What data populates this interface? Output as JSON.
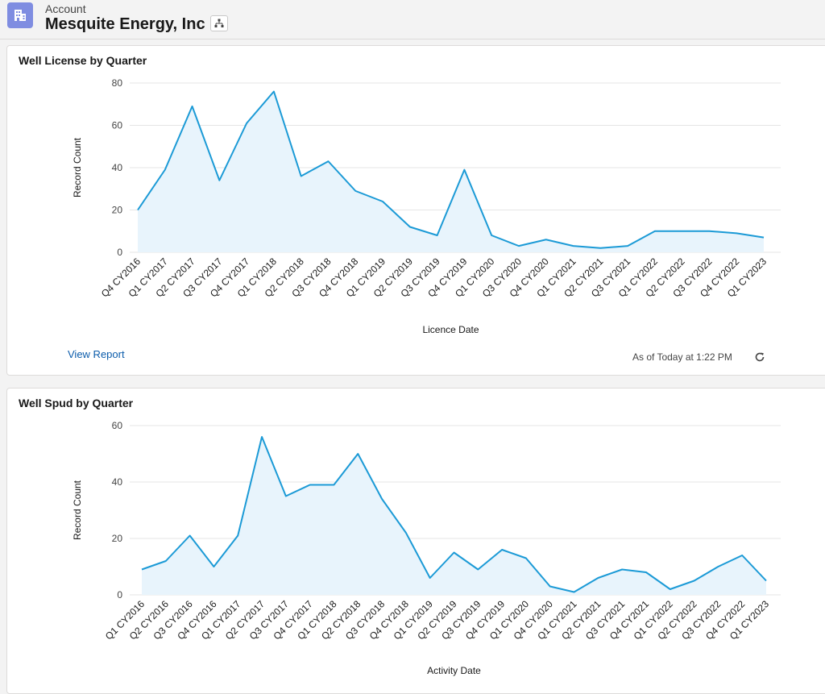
{
  "header": {
    "object_label": "Account",
    "account_name": "Mesquite Energy, Inc"
  },
  "colors": {
    "line": "#1b9ad6",
    "fill": "#e8f4fc",
    "grid": "#e5e5e5",
    "link": "#0b5cab",
    "icon_bg": "#7f8de1"
  },
  "cards": [
    {
      "title": "Well License by Quarter",
      "footer_link": "View Report",
      "as_of": "As of Today at 1:22 PM"
    },
    {
      "title": "Well Spud by Quarter"
    }
  ],
  "chart_data": [
    {
      "type": "area",
      "title": "Well License by Quarter",
      "xlabel": "Licence Date",
      "ylabel": "Record Count",
      "ylim": [
        0,
        80
      ],
      "yticks": [
        0,
        20,
        40,
        60,
        80
      ],
      "grid": true,
      "categories": [
        "Q4 CY2016",
        "Q1 CY2017",
        "Q2 CY2017",
        "Q3 CY2017",
        "Q4 CY2017",
        "Q1 CY2018",
        "Q2 CY2018",
        "Q3 CY2018",
        "Q4 CY2018",
        "Q1 CY2019",
        "Q2 CY2019",
        "Q3 CY2019",
        "Q4 CY2019",
        "Q1 CY2020",
        "Q3 CY2020",
        "Q4 CY2020",
        "Q1 CY2021",
        "Q2 CY2021",
        "Q3 CY2021",
        "Q1 CY2022",
        "Q2 CY2022",
        "Q3 CY2022",
        "Q4 CY2022",
        "Q1 CY2023"
      ],
      "values": [
        20,
        39,
        69,
        34,
        61,
        76,
        36,
        43,
        29,
        24,
        12,
        8,
        39,
        8,
        3,
        6,
        3,
        2,
        3,
        10,
        10,
        10,
        9,
        7
      ]
    },
    {
      "type": "area",
      "title": "Well Spud by Quarter",
      "xlabel": "Activity Date",
      "ylabel": "Record Count",
      "ylim": [
        0,
        60
      ],
      "yticks": [
        0,
        20,
        40,
        60
      ],
      "grid": true,
      "categories": [
        "Q1 CY2016",
        "Q2 CY2016",
        "Q3 CY2016",
        "Q4 CY2016",
        "Q1 CY2017",
        "Q2 CY2017",
        "Q3 CY2017",
        "Q4 CY2017",
        "Q1 CY2018",
        "Q2 CY2018",
        "Q3 CY2018",
        "Q4 CY2018",
        "Q1 CY2019",
        "Q2 CY2019",
        "Q3 CY2019",
        "Q4 CY2019",
        "Q1 CY2020",
        "Q4 CY2020",
        "Q1 CY2021",
        "Q2 CY2021",
        "Q3 CY2021",
        "Q4 CY2021",
        "Q1 CY2022",
        "Q2 CY2022",
        "Q3 CY2022",
        "Q4 CY2022",
        "Q1 CY2023"
      ],
      "values": [
        9,
        12,
        21,
        10,
        21,
        56,
        35,
        39,
        39,
        50,
        34,
        22,
        6,
        15,
        9,
        16,
        13,
        3,
        1,
        6,
        9,
        8,
        2,
        5,
        10,
        14,
        5
      ]
    }
  ]
}
